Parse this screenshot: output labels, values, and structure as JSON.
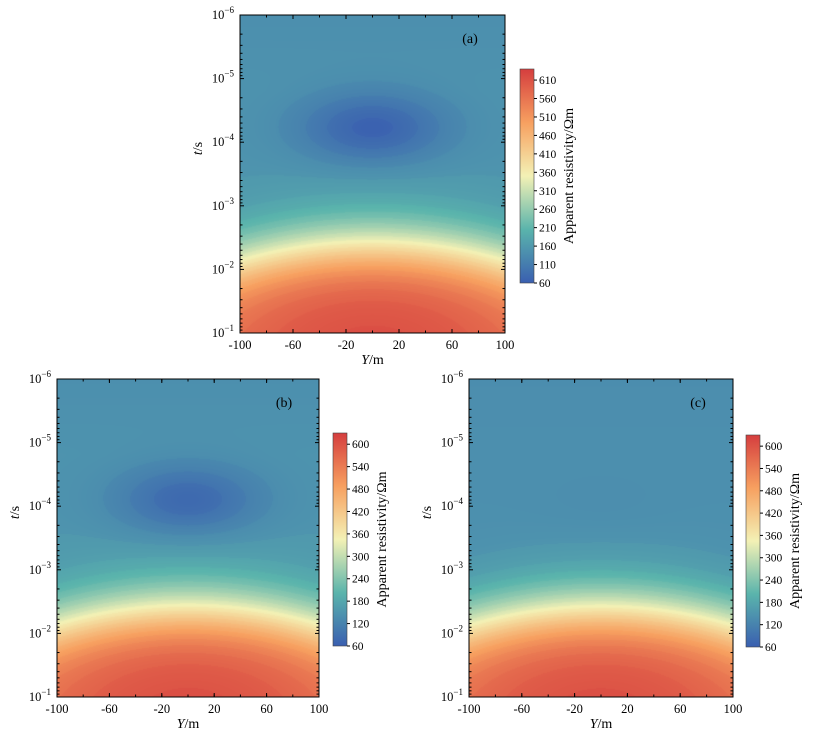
{
  "chart_data": [
    {
      "type": "heatmap",
      "panel_label": "(a)",
      "xlabel": {
        "main": "Y",
        "unit": "/m"
      },
      "ylabel": {
        "main": "t",
        "unit": "/s"
      },
      "x_ticks": [
        "-100",
        "-60",
        "-20",
        "20",
        "60",
        "100"
      ],
      "xlim": [
        -100,
        100
      ],
      "y_scale": "log",
      "ylim": [
        1e-06,
        0.1
      ],
      "y_ticks": [
        {
          "base": "10",
          "exp": "−6"
        },
        {
          "base": "10",
          "exp": "−5"
        },
        {
          "base": "10",
          "exp": "−4"
        },
        {
          "base": "10",
          "exp": "−3"
        },
        {
          "base": "10",
          "exp": "−2"
        },
        {
          "base": "10",
          "exp": "−1"
        }
      ],
      "colorbar": {
        "label": "Apparent resistivity/Ωm",
        "range": [
          60,
          640
        ],
        "ticks": [
          "60",
          "110",
          "160",
          "210",
          "260",
          "310",
          "360",
          "410",
          "460",
          "510",
          "560",
          "610"
        ]
      },
      "field": {
        "background": 150,
        "near_surface": 140,
        "deep": 620,
        "anomaly_min": 65,
        "anomaly_center": [
          0,
          6e-05
        ],
        "colors_low_to_high": [
          "#3a5fb0",
          "#5ab4ac",
          "#f3f1b5",
          "#f7a060",
          "#d53e3e"
        ]
      }
    },
    {
      "type": "heatmap",
      "panel_label": "(b)",
      "xlabel": {
        "main": "Y",
        "unit": "/m"
      },
      "ylabel": {
        "main": "t",
        "unit": "/s"
      },
      "x_ticks": [
        "-100",
        "-60",
        "-20",
        "20",
        "60",
        "100"
      ],
      "xlim": [
        -100,
        100
      ],
      "y_scale": "log",
      "ylim": [
        1e-06,
        0.1
      ],
      "y_ticks": [
        {
          "base": "10",
          "exp": "−6"
        },
        {
          "base": "10",
          "exp": "−5"
        },
        {
          "base": "10",
          "exp": "−4"
        },
        {
          "base": "10",
          "exp": "−3"
        },
        {
          "base": "10",
          "exp": "−2"
        },
        {
          "base": "10",
          "exp": "−1"
        }
      ],
      "colorbar": {
        "label": "Apparent resistivity/Ωm",
        "range": [
          60,
          630
        ],
        "ticks": [
          "60",
          "120",
          "180",
          "240",
          "300",
          "360",
          "420",
          "480",
          "540",
          "600"
        ]
      },
      "field": {
        "background": 150,
        "near_surface": 140,
        "deep": 610,
        "anomaly_min": 75,
        "anomaly_center": [
          0,
          8e-05
        ],
        "colors_low_to_high": [
          "#3a5fb0",
          "#5ab4ac",
          "#f3f1b5",
          "#f7a060",
          "#d53e3e"
        ]
      }
    },
    {
      "type": "heatmap",
      "panel_label": "(c)",
      "xlabel": {
        "main": "Y",
        "unit": "/m"
      },
      "ylabel": {
        "main": "t",
        "unit": "/s"
      },
      "x_ticks": [
        "-100",
        "-60",
        "-20",
        "20",
        "60",
        "100"
      ],
      "xlim": [
        -100,
        100
      ],
      "y_scale": "log",
      "ylim": [
        1e-06,
        0.1
      ],
      "y_ticks": [
        {
          "base": "10",
          "exp": "−6"
        },
        {
          "base": "10",
          "exp": "−5"
        },
        {
          "base": "10",
          "exp": "−4"
        },
        {
          "base": "10",
          "exp": "−3"
        },
        {
          "base": "10",
          "exp": "−2"
        },
        {
          "base": "10",
          "exp": "−1"
        }
      ],
      "colorbar": {
        "label": "Apparent resistivity/Ωm",
        "range": [
          60,
          630
        ],
        "ticks": [
          "60",
          "120",
          "180",
          "240",
          "300",
          "360",
          "420",
          "480",
          "540",
          "600"
        ]
      },
      "field": {
        "background": 140,
        "near_surface": 135,
        "deep": 610,
        "anomaly_min": 135,
        "anomaly_center": [
          0,
          0.0001
        ],
        "colors_low_to_high": [
          "#3a5fb0",
          "#5ab4ac",
          "#f3f1b5",
          "#f7a060",
          "#d53e3e"
        ]
      }
    }
  ]
}
